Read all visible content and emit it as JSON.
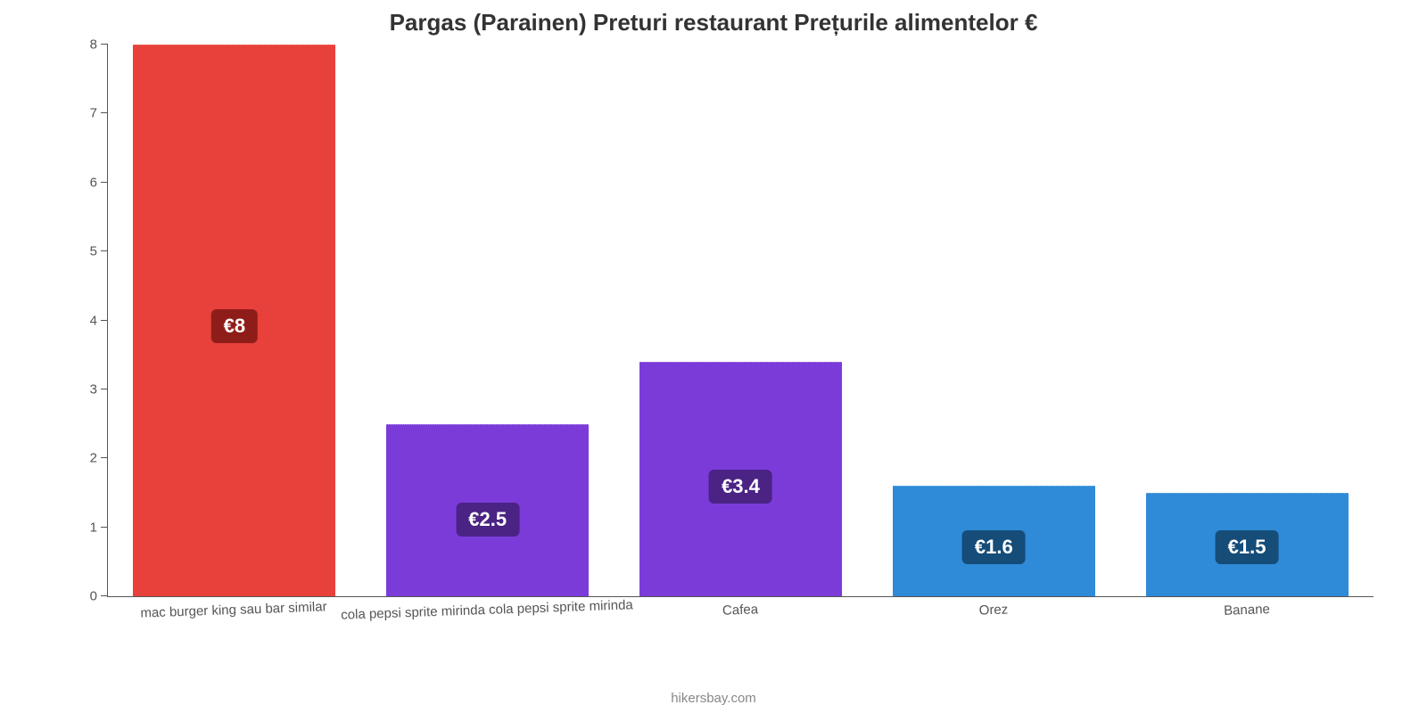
{
  "chart": {
    "type": "bar",
    "title": "Pargas (Parainen) Preturi restaurant Prețurile alimentelor €",
    "title_fontsize": 26,
    "title_color": "#333333",
    "background_color": "#ffffff",
    "axis_color": "#555555",
    "label_color": "#555555",
    "label_fontsize": 15,
    "value_label_fontsize": 22,
    "value_label_text_color": "#ffffff",
    "bar_width_pct": 80,
    "ylim": [
      0,
      8
    ],
    "ytick_step": 1,
    "yticks": [
      {
        "v": 0,
        "label": "0"
      },
      {
        "v": 1,
        "label": "1"
      },
      {
        "v": 2,
        "label": "2"
      },
      {
        "v": 3,
        "label": "3"
      },
      {
        "v": 4,
        "label": "4"
      },
      {
        "v": 5,
        "label": "5"
      },
      {
        "v": 6,
        "label": "6"
      },
      {
        "v": 7,
        "label": "7"
      },
      {
        "v": 8,
        "label": "8"
      }
    ],
    "series": [
      {
        "category": "mac burger king sau bar similar",
        "value": 8,
        "value_label": "€8",
        "bar_color": "#e8403b",
        "badge_color": "#8e1d1a",
        "badge_bottom_pct": 52
      },
      {
        "category": "cola pepsi sprite mirinda cola pepsi sprite mirinda",
        "value": 2.5,
        "value_label": "€2.5",
        "bar_color": "#7b3bd9",
        "badge_color": "#4a2384",
        "badge_bottom_pct": 17
      },
      {
        "category": "Cafea",
        "value": 3.4,
        "value_label": "€3.4",
        "bar_color": "#7b3bd9",
        "badge_color": "#4a2384",
        "badge_bottom_pct": 23
      },
      {
        "category": "Orez",
        "value": 1.6,
        "value_label": "€1.6",
        "bar_color": "#2f8bd8",
        "badge_color": "#154c78",
        "badge_bottom_pct": 12
      },
      {
        "category": "Banane",
        "value": 1.5,
        "value_label": "€1.5",
        "bar_color": "#2f8bd8",
        "badge_color": "#154c78",
        "badge_bottom_pct": 12
      }
    ],
    "x_label_rotate_deg": -2,
    "attribution": "hikersbay.com",
    "attribution_color": "#888888",
    "attribution_fontsize": 15
  }
}
